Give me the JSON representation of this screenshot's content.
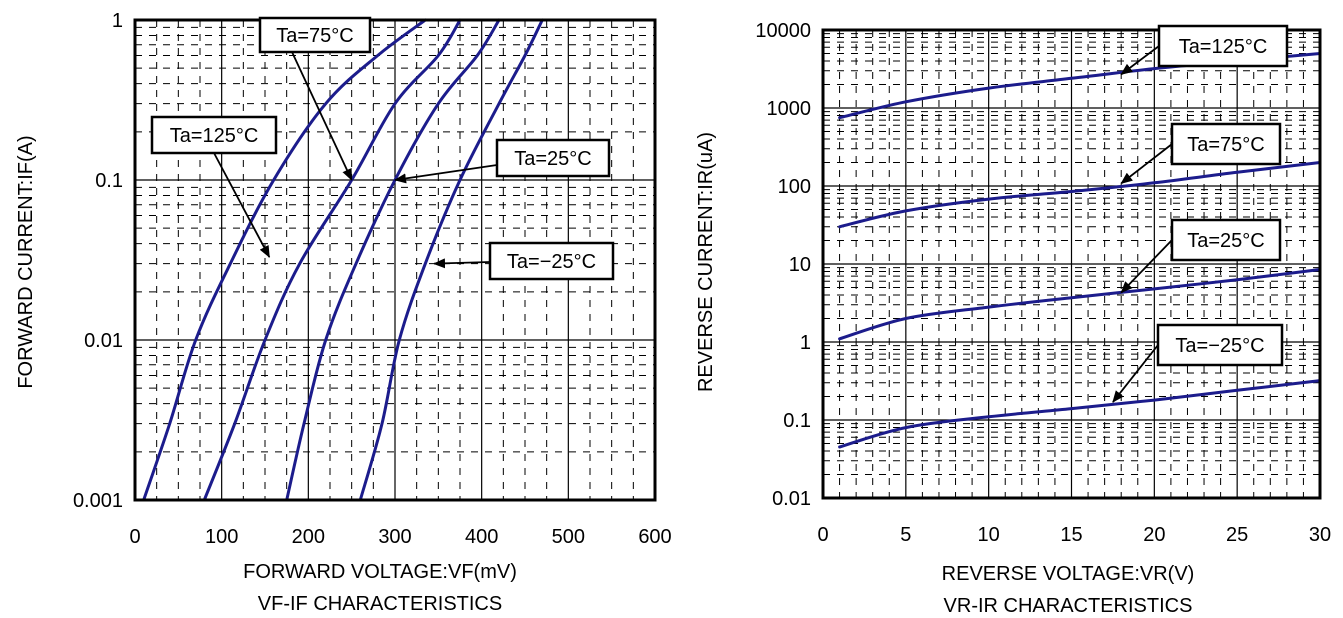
{
  "colors": {
    "curve": "#1c1c8c"
  },
  "chart_data": [
    {
      "type": "line",
      "caption": "VF-IF CHARACTERISTICS",
      "xlabel": "FORWARD VOLTAGE:VF(mV)",
      "ylabel": "FORWARD CURRENT:IF(A)",
      "xlim": [
        0,
        600
      ],
      "ylim": [
        0.001,
        1
      ],
      "yscale": "log",
      "grid": true,
      "xticks": [
        "0",
        "100",
        "200",
        "300",
        "400",
        "500",
        "600"
      ],
      "yticks": [
        "0.001",
        "0.01",
        "0.1",
        "1"
      ],
      "series": [
        {
          "name": "Ta=125°C",
          "points": [
            [
              10,
              0.001
            ],
            [
              40,
              0.003
            ],
            [
              70,
              0.01
            ],
            [
              110,
              0.03
            ],
            [
              160,
              0.1
            ],
            [
              220,
              0.3
            ],
            [
              280,
              0.6
            ],
            [
              335,
              1
            ]
          ]
        },
        {
          "name": "Ta=75°C",
          "points": [
            [
              80,
              0.001
            ],
            [
              115,
              0.003
            ],
            [
              150,
              0.01
            ],
            [
              190,
              0.03
            ],
            [
              250,
              0.1
            ],
            [
              300,
              0.3
            ],
            [
              350,
              0.6
            ],
            [
              375,
              1
            ]
          ]
        },
        {
          "name": "Ta=25°C",
          "points": [
            [
              175,
              0.001
            ],
            [
              195,
              0.003
            ],
            [
              220,
              0.01
            ],
            [
              255,
              0.03
            ],
            [
              300,
              0.1
            ],
            [
              350,
              0.3
            ],
            [
              395,
              0.6
            ],
            [
              420,
              1
            ]
          ]
        },
        {
          "name": "Ta=−25°C",
          "points": [
            [
              260,
              0.001
            ],
            [
              285,
              0.003
            ],
            [
              305,
              0.01
            ],
            [
              335,
              0.03
            ],
            [
              375,
              0.1
            ],
            [
              420,
              0.3
            ],
            [
              450,
              0.6
            ],
            [
              470,
              1
            ]
          ]
        }
      ],
      "annotations": [
        {
          "text": "Ta=75°C",
          "series": 1
        },
        {
          "text": "Ta=125°C",
          "series": 0
        },
        {
          "text": "Ta=25°C",
          "series": 2
        },
        {
          "text": "Ta=−25°C",
          "series": 3
        }
      ]
    },
    {
      "type": "line",
      "caption": "VR-IR CHARACTERISTICS",
      "xlabel": "REVERSE VOLTAGE:VR(V)",
      "ylabel": "REVERSE CURRENT:IR(uA)",
      "xlim": [
        0,
        30
      ],
      "ylim": [
        0.01,
        10000
      ],
      "yscale": "log",
      "grid": true,
      "xticks": [
        "0",
        "5",
        "10",
        "15",
        "20",
        "25",
        "30"
      ],
      "yticks": [
        "0.01",
        "0.1",
        "1",
        "10",
        "100",
        "1000",
        "10000"
      ],
      "series": [
        {
          "name": "Ta=125°C",
          "points": [
            [
              1,
              750
            ],
            [
              5,
              1200
            ],
            [
              10,
              1800
            ],
            [
              15,
              2400
            ],
            [
              20,
              3200
            ],
            [
              25,
              4000
            ],
            [
              30,
              5000
            ]
          ]
        },
        {
          "name": "Ta=75°C",
          "points": [
            [
              1,
              30
            ],
            [
              5,
              48
            ],
            [
              10,
              68
            ],
            [
              15,
              85
            ],
            [
              20,
              110
            ],
            [
              25,
              150
            ],
            [
              30,
              200
            ]
          ]
        },
        {
          "name": "Ta=25°C",
          "points": [
            [
              1,
              1.1
            ],
            [
              5,
              2
            ],
            [
              10,
              2.8
            ],
            [
              15,
              3.7
            ],
            [
              20,
              4.8
            ],
            [
              25,
              6.3
            ],
            [
              30,
              8.5
            ]
          ]
        },
        {
          "name": "Ta=−25°C",
          "points": [
            [
              1,
              0.045
            ],
            [
              5,
              0.08
            ],
            [
              10,
              0.11
            ],
            [
              15,
              0.14
            ],
            [
              20,
              0.18
            ],
            [
              25,
              0.24
            ],
            [
              30,
              0.32
            ]
          ]
        }
      ],
      "annotations": [
        {
          "text": "Ta=125°C",
          "series": 0
        },
        {
          "text": "Ta=75°C",
          "series": 1
        },
        {
          "text": "Ta=25°C",
          "series": 2
        },
        {
          "text": "Ta=−25°C",
          "series": 3
        }
      ]
    }
  ]
}
